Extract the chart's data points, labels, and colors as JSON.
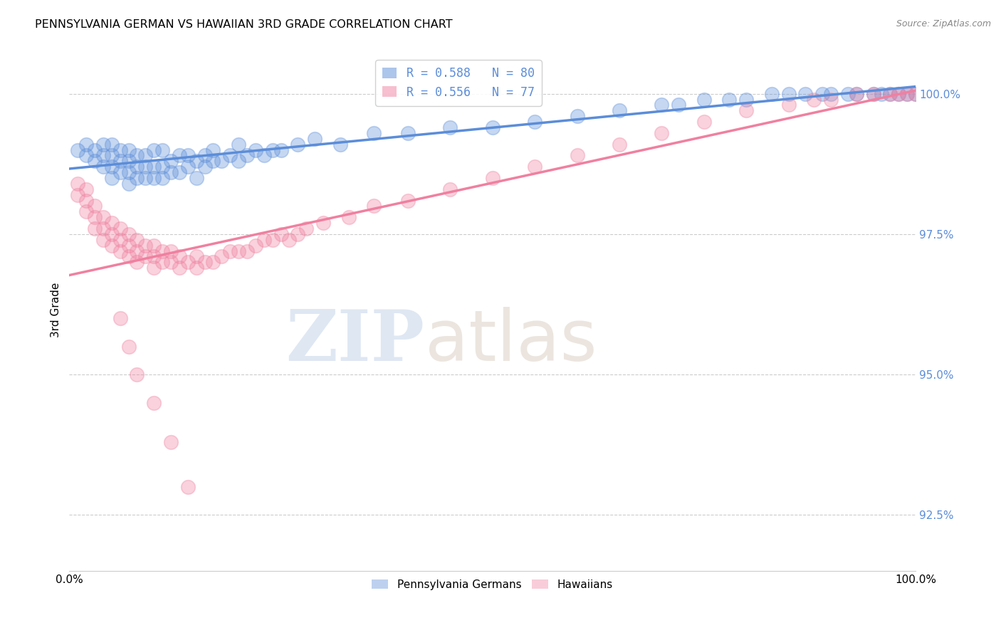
{
  "title": "PENNSYLVANIA GERMAN VS HAWAIIAN 3RD GRADE CORRELATION CHART",
  "source": "Source: ZipAtlas.com",
  "ylabel": "3rd Grade",
  "xlim": [
    0.0,
    1.0
  ],
  "ylim": [
    0.915,
    1.008
  ],
  "xticks": [
    0.0,
    0.125,
    0.25,
    0.375,
    0.5,
    0.625,
    0.75,
    0.875,
    1.0
  ],
  "xticklabels": [
    "0.0%",
    "",
    "",
    "",
    "",
    "",
    "",
    "",
    "100.0%"
  ],
  "ytick_positions": [
    0.925,
    0.95,
    0.975,
    1.0
  ],
  "yticklabels": [
    "92.5%",
    "95.0%",
    "97.5%",
    "100.0%"
  ],
  "blue_color": "#5B8DD9",
  "pink_color": "#F080A0",
  "legend_blue_label": "R = 0.588   N = 80",
  "legend_pink_label": "R = 0.556   N = 77",
  "legend_bottom_blue": "Pennsylvania Germans",
  "legend_bottom_pink": "Hawaiians",
  "watermark_zip": "ZIP",
  "watermark_atlas": "atlas",
  "blue_scatter_x": [
    0.01,
    0.02,
    0.02,
    0.03,
    0.03,
    0.04,
    0.04,
    0.04,
    0.05,
    0.05,
    0.05,
    0.05,
    0.06,
    0.06,
    0.06,
    0.07,
    0.07,
    0.07,
    0.07,
    0.08,
    0.08,
    0.08,
    0.09,
    0.09,
    0.09,
    0.1,
    0.1,
    0.1,
    0.11,
    0.11,
    0.11,
    0.12,
    0.12,
    0.13,
    0.13,
    0.14,
    0.14,
    0.15,
    0.15,
    0.16,
    0.16,
    0.17,
    0.17,
    0.18,
    0.19,
    0.2,
    0.2,
    0.21,
    0.22,
    0.23,
    0.24,
    0.25,
    0.27,
    0.29,
    0.32,
    0.36,
    0.4,
    0.45,
    0.5,
    0.55,
    0.6,
    0.65,
    0.7,
    0.72,
    0.75,
    0.78,
    0.8,
    0.83,
    0.85,
    0.87,
    0.89,
    0.9,
    0.92,
    0.93,
    0.95,
    0.96,
    0.97,
    0.98,
    0.99,
    1.0
  ],
  "blue_scatter_y": [
    0.99,
    0.989,
    0.991,
    0.988,
    0.99,
    0.987,
    0.989,
    0.991,
    0.985,
    0.987,
    0.989,
    0.991,
    0.986,
    0.988,
    0.99,
    0.984,
    0.986,
    0.988,
    0.99,
    0.985,
    0.987,
    0.989,
    0.985,
    0.987,
    0.989,
    0.985,
    0.987,
    0.99,
    0.985,
    0.987,
    0.99,
    0.986,
    0.988,
    0.986,
    0.989,
    0.987,
    0.989,
    0.985,
    0.988,
    0.987,
    0.989,
    0.988,
    0.99,
    0.988,
    0.989,
    0.988,
    0.991,
    0.989,
    0.99,
    0.989,
    0.99,
    0.99,
    0.991,
    0.992,
    0.991,
    0.993,
    0.993,
    0.994,
    0.994,
    0.995,
    0.996,
    0.997,
    0.998,
    0.998,
    0.999,
    0.999,
    0.999,
    1.0,
    1.0,
    1.0,
    1.0,
    1.0,
    1.0,
    1.0,
    1.0,
    1.0,
    1.0,
    1.0,
    1.0,
    1.0
  ],
  "pink_scatter_x": [
    0.01,
    0.01,
    0.02,
    0.02,
    0.02,
    0.03,
    0.03,
    0.03,
    0.04,
    0.04,
    0.04,
    0.05,
    0.05,
    0.05,
    0.06,
    0.06,
    0.06,
    0.07,
    0.07,
    0.07,
    0.08,
    0.08,
    0.08,
    0.09,
    0.09,
    0.1,
    0.1,
    0.1,
    0.11,
    0.11,
    0.12,
    0.12,
    0.13,
    0.13,
    0.14,
    0.15,
    0.15,
    0.16,
    0.17,
    0.18,
    0.19,
    0.2,
    0.21,
    0.22,
    0.23,
    0.24,
    0.25,
    0.26,
    0.27,
    0.28,
    0.3,
    0.33,
    0.36,
    0.4,
    0.45,
    0.5,
    0.55,
    0.6,
    0.65,
    0.7,
    0.75,
    0.8,
    0.85,
    0.88,
    0.9,
    0.93,
    0.95,
    0.97,
    0.98,
    0.99,
    1.0,
    0.06,
    0.07,
    0.08,
    0.1,
    0.12,
    0.14
  ],
  "pink_scatter_y": [
    0.984,
    0.982,
    0.983,
    0.981,
    0.979,
    0.98,
    0.978,
    0.976,
    0.978,
    0.976,
    0.974,
    0.977,
    0.975,
    0.973,
    0.976,
    0.974,
    0.972,
    0.975,
    0.973,
    0.971,
    0.974,
    0.972,
    0.97,
    0.973,
    0.971,
    0.973,
    0.971,
    0.969,
    0.972,
    0.97,
    0.972,
    0.97,
    0.971,
    0.969,
    0.97,
    0.971,
    0.969,
    0.97,
    0.97,
    0.971,
    0.972,
    0.972,
    0.972,
    0.973,
    0.974,
    0.974,
    0.975,
    0.974,
    0.975,
    0.976,
    0.977,
    0.978,
    0.98,
    0.981,
    0.983,
    0.985,
    0.987,
    0.989,
    0.991,
    0.993,
    0.995,
    0.997,
    0.998,
    0.999,
    0.999,
    1.0,
    1.0,
    1.0,
    1.0,
    1.0,
    1.0,
    0.96,
    0.955,
    0.95,
    0.945,
    0.938,
    0.93
  ],
  "blue_trend_x": [
    0.0,
    1.0
  ],
  "blue_trend_y_start": 0.9855,
  "blue_trend_y_end": 1.001,
  "pink_trend_x": [
    0.0,
    1.0
  ],
  "pink_trend_y_start": 0.972,
  "pink_trend_y_end": 1.001
}
